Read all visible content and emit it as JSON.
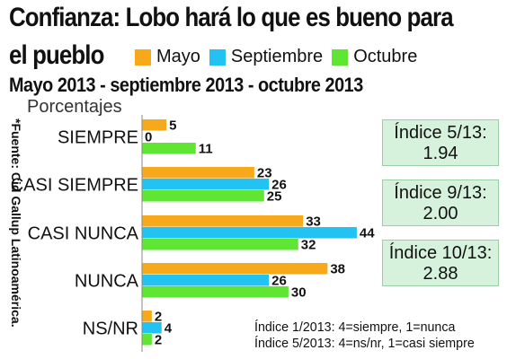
{
  "title_line1": "Confianza: Lobo hará lo que es bueno para",
  "title_line2": "el pueblo",
  "subtitle": "Mayo 2013 - septiembre 2013 - octubre 2013",
  "source": "*Fuente: Cid Gallup Latinoamérica.",
  "colors": {
    "mayo": "#f7a81b",
    "septiembre": "#22c3f2",
    "octubre": "#5ee632"
  },
  "index_boxes": [
    {
      "label": "Índice 5/13:",
      "value": "1.94"
    },
    {
      "label": "Índice 9/13:",
      "value": "2.00"
    },
    {
      "label": "Índice 10/13:",
      "value": "2.88"
    }
  ],
  "notes": [
    "Índice 1/2013: 4=siempre, 1=nunca",
    "Índice 5/2013: 4=ns/nr, 1=casi siempre"
  ],
  "chart_data": {
    "type": "bar",
    "orientation": "horizontal",
    "ylabel": "Porcentajes",
    "categories": [
      "SIEMPRE",
      "CASI SIEMPRE",
      "CASI NUNCA",
      "NUNCA",
      "NS/NR"
    ],
    "series": [
      {
        "name": "Mayo",
        "values": [
          5,
          23,
          33,
          38,
          2
        ]
      },
      {
        "name": "Septiembre",
        "values": [
          0,
          26,
          44,
          26,
          4
        ]
      },
      {
        "name": "Octubre",
        "values": [
          11,
          25,
          32,
          30,
          2
        ]
      }
    ],
    "xlim": [
      0,
      44
    ],
    "legend": "top"
  }
}
